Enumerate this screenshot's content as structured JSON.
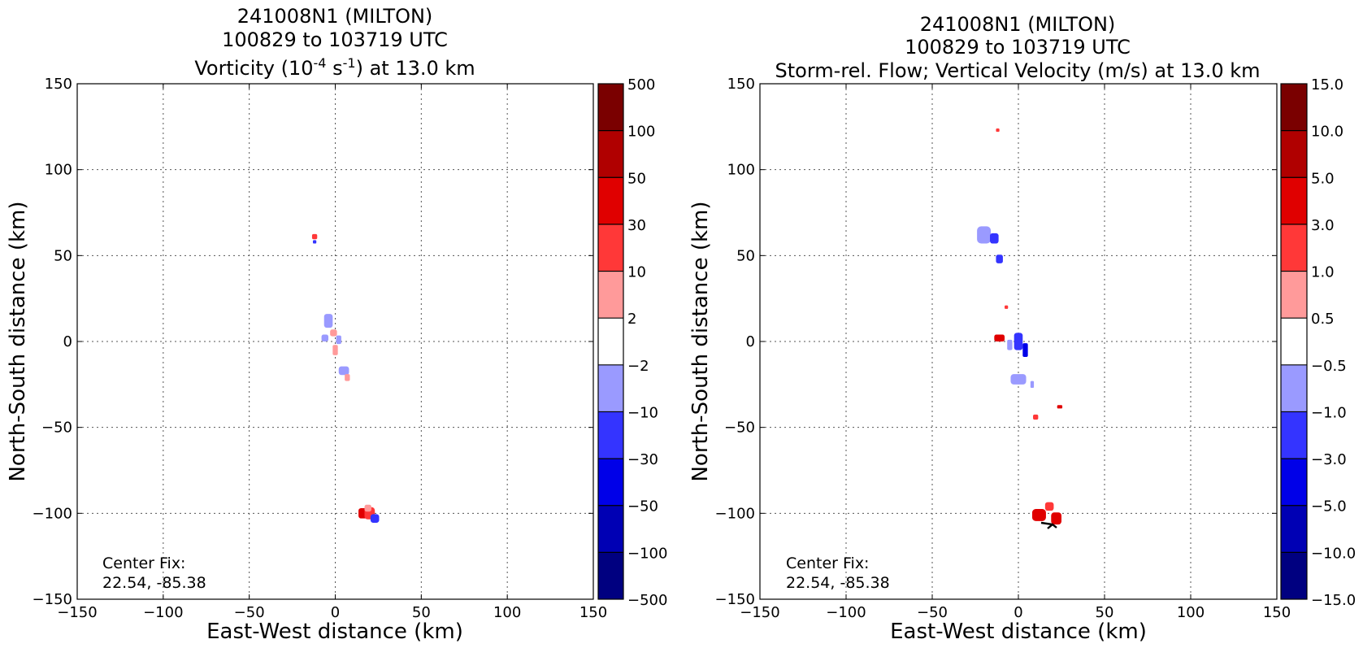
{
  "chart_data": [
    {
      "type": "heatmap",
      "title_line1": "241008N1 (MILTON)",
      "title_line2": "100829 to 103719 UTC",
      "title_line3_pre": "Vorticity (10",
      "title_line3_sup1": "-4",
      "title_line3_mid": " s",
      "title_line3_sup2": "-1",
      "title_line3_post": ") at 13.0 km",
      "xlabel": "East-West distance (km)",
      "ylabel": "North-South distance (km)",
      "xlim": [
        -150,
        150
      ],
      "ylim": [
        -150,
        150
      ],
      "xticks": [
        "−150",
        "−100",
        "−50",
        "0",
        "50",
        "100",
        "150"
      ],
      "yticks": [
        "150",
        "100",
        "50",
        "0",
        "−50",
        "−100",
        "−150"
      ],
      "grid": true,
      "annotation_line1": "Center Fix:",
      "annotation_line2": "22.54, -85.38",
      "colorbar_labels": [
        "500",
        "100",
        "50",
        "30",
        "10",
        "2",
        "−2",
        "−10",
        "−30",
        "−50",
        "−100",
        "−500"
      ],
      "colorbar_colors": [
        "#7a0000",
        "#b00000",
        "#e00000",
        "#ff3838",
        "#ff9a9a",
        "#ffffff",
        "#9a9aff",
        "#3434ff",
        "#0000e8",
        "#0000b4",
        "#000080"
      ],
      "patches": [
        {
          "x": -12,
          "y": 61,
          "w": 3,
          "h": 3,
          "level": "10"
        },
        {
          "x": -12,
          "y": 58,
          "w": 2,
          "h": 2,
          "level": "-10"
        },
        {
          "x": -4,
          "y": 12,
          "w": 5,
          "h": 8,
          "level": "-2"
        },
        {
          "x": -6,
          "y": 2,
          "w": 4,
          "h": 4,
          "level": "-2"
        },
        {
          "x": -1,
          "y": 5,
          "w": 4,
          "h": 4,
          "level": "2"
        },
        {
          "x": 2,
          "y": 1,
          "w": 3,
          "h": 5,
          "level": "-2"
        },
        {
          "x": 0,
          "y": -5,
          "w": 3,
          "h": 6,
          "level": "2"
        },
        {
          "x": 5,
          "y": -17,
          "w": 6,
          "h": 5,
          "level": "-2"
        },
        {
          "x": 7,
          "y": -21,
          "w": 3,
          "h": 4,
          "level": "2"
        },
        {
          "x": 16,
          "y": -100,
          "w": 5,
          "h": 6,
          "level": "30"
        },
        {
          "x": 20,
          "y": -100,
          "w": 6,
          "h": 7,
          "level": "10"
        },
        {
          "x": 23,
          "y": -103,
          "w": 5,
          "h": 5,
          "level": "-10"
        },
        {
          "x": 19,
          "y": -97,
          "w": 4,
          "h": 4,
          "level": "2"
        }
      ]
    },
    {
      "type": "heatmap",
      "title_line1": "241008N1 (MILTON)",
      "title_line2": "100829 to 103719 UTC",
      "title_line3": "Storm-rel. Flow; Vertical Velocity (m/s) at 13.0 km",
      "xlabel": "East-West distance (km)",
      "ylabel": "North-South distance (km)",
      "xlim": [
        -150,
        150
      ],
      "ylim": [
        -150,
        150
      ],
      "xticks": [
        "−150",
        "−100",
        "−50",
        "0",
        "50",
        "100",
        "150"
      ],
      "yticks": [
        "150",
        "100",
        "50",
        "0",
        "−50",
        "−100",
        "−150"
      ],
      "grid": true,
      "annotation_line1": "Center Fix:",
      "annotation_line2": "22.54, -85.38",
      "colorbar_labels": [
        "15.0",
        "10.0",
        "5.0",
        "3.0",
        "1.0",
        "0.5",
        "−0.5",
        "−1.0",
        "−3.0",
        "−5.0",
        "−10.0",
        "−15.0"
      ],
      "colorbar_colors": [
        "#7a0000",
        "#b00000",
        "#e00000",
        "#ff3838",
        "#ff9a9a",
        "#ffffff",
        "#9a9aff",
        "#3434ff",
        "#0000e8",
        "#0000b4",
        "#000080"
      ],
      "patches": [
        {
          "x": -12,
          "y": 123,
          "w": 2,
          "h": 2,
          "level": "1.0"
        },
        {
          "x": -20,
          "y": 62,
          "w": 8,
          "h": 10,
          "level": "-0.5"
        },
        {
          "x": -14,
          "y": 60,
          "w": 5,
          "h": 6,
          "level": "-1.0"
        },
        {
          "x": -11,
          "y": 48,
          "w": 4,
          "h": 5,
          "level": "-1.0"
        },
        {
          "x": -7,
          "y": 20,
          "w": 2,
          "h": 2,
          "level": "1.0"
        },
        {
          "x": -11,
          "y": 2,
          "w": 6,
          "h": 4,
          "level": "3.0"
        },
        {
          "x": -5,
          "y": -2,
          "w": 3,
          "h": 6,
          "level": "-0.5"
        },
        {
          "x": 0,
          "y": 0,
          "w": 5,
          "h": 10,
          "level": "-1.0"
        },
        {
          "x": 4,
          "y": -5,
          "w": 3,
          "h": 8,
          "level": "-3.0"
        },
        {
          "x": 0,
          "y": -22,
          "w": 9,
          "h": 6,
          "level": "-0.5"
        },
        {
          "x": 8,
          "y": -25,
          "w": 2,
          "h": 4,
          "level": "-0.5"
        },
        {
          "x": 24,
          "y": -38,
          "w": 3,
          "h": 2,
          "level": "3.0"
        },
        {
          "x": 10,
          "y": -44,
          "w": 3,
          "h": 3,
          "level": "1.0"
        },
        {
          "x": 12,
          "y": -101,
          "w": 8,
          "h": 7,
          "level": "3.0"
        },
        {
          "x": 18,
          "y": -96,
          "w": 5,
          "h": 5,
          "level": "1.0"
        },
        {
          "x": 22,
          "y": -103,
          "w": 6,
          "h": 7,
          "level": "3.0"
        }
      ]
    }
  ]
}
